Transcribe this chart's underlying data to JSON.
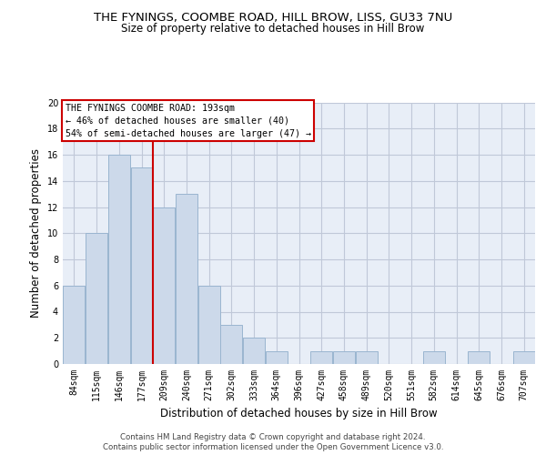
{
  "title1": "THE FYNINGS, COOMBE ROAD, HILL BROW, LISS, GU33 7NU",
  "title2": "Size of property relative to detached houses in Hill Brow",
  "xlabel": "Distribution of detached houses by size in Hill Brow",
  "ylabel": "Number of detached properties",
  "categories": [
    "84sqm",
    "115sqm",
    "146sqm",
    "177sqm",
    "209sqm",
    "240sqm",
    "271sqm",
    "302sqm",
    "333sqm",
    "364sqm",
    "396sqm",
    "427sqm",
    "458sqm",
    "489sqm",
    "520sqm",
    "551sqm",
    "582sqm",
    "614sqm",
    "645sqm",
    "676sqm",
    "707sqm"
  ],
  "values": [
    6,
    10,
    16,
    15,
    12,
    13,
    6,
    3,
    2,
    1,
    0,
    1,
    1,
    1,
    0,
    0,
    1,
    0,
    1,
    0,
    1
  ],
  "bar_color": "#ccd9ea",
  "bar_edge_color": "#9ab5d0",
  "vline_color": "#cc0000",
  "annotation_text": "THE FYNINGS COOMBE ROAD: 193sqm\n← 46% of detached houses are smaller (40)\n54% of semi-detached houses are larger (47) →",
  "ylim": [
    0,
    20
  ],
  "yticks": [
    0,
    2,
    4,
    6,
    8,
    10,
    12,
    14,
    16,
    18,
    20
  ],
  "footer1": "Contains HM Land Registry data © Crown copyright and database right 2024.",
  "footer2": "Contains public sector information licensed under the Open Government Licence v3.0.",
  "plot_bg_color": "#e8eef7"
}
